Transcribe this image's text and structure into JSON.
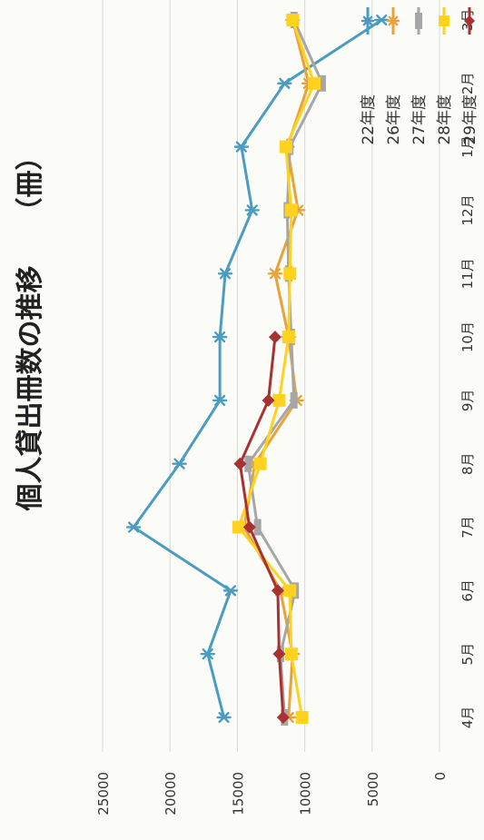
{
  "chart_data": {
    "type": "line",
    "title": "個人貸出冊数の推移　　（冊）",
    "categories": [
      "4月",
      "5月",
      "6月",
      "7月",
      "8月",
      "9月",
      "10月",
      "11月",
      "12月",
      "1月",
      "2月",
      "3月"
    ],
    "ylim": [
      0,
      25000
    ],
    "yticks": [
      0,
      5000,
      10000,
      15000,
      20000,
      25000
    ],
    "grid": true,
    "legend_position": "top-right",
    "series": [
      {
        "name": "22年度",
        "color": "#4a9cc0",
        "marker": "asterisk",
        "values": [
          16000,
          17200,
          15500,
          22700,
          19300,
          16300,
          16300,
          15900,
          13900,
          14700,
          11500,
          4300
        ]
      },
      {
        "name": "26年度",
        "color": "#e8a23a",
        "marker": "star",
        "values": [
          11200,
          10900,
          11800,
          14500,
          13700,
          10600,
          11200,
          12200,
          10500,
          11300,
          9700,
          10900
        ]
      },
      {
        "name": "27年度",
        "color": "#a6a6a6",
        "marker": "dash",
        "values": [
          11500,
          11800,
          10700,
          13500,
          14200,
          10800,
          11000,
          11200,
          11300,
          11100,
          8700,
          10800
        ]
      },
      {
        "name": "28年度",
        "color": "#ffd21f",
        "marker": "square",
        "values": [
          10200,
          11000,
          11100,
          14900,
          13300,
          11900,
          11200,
          11100,
          11000,
          11400,
          9300,
          10900
        ]
      },
      {
        "name": "29年度",
        "color": "#a83232",
        "marker": "diamond",
        "values": [
          11600,
          11900,
          12000,
          14100,
          14800,
          12700,
          12200,
          null,
          null,
          null,
          null,
          null
        ]
      }
    ]
  }
}
